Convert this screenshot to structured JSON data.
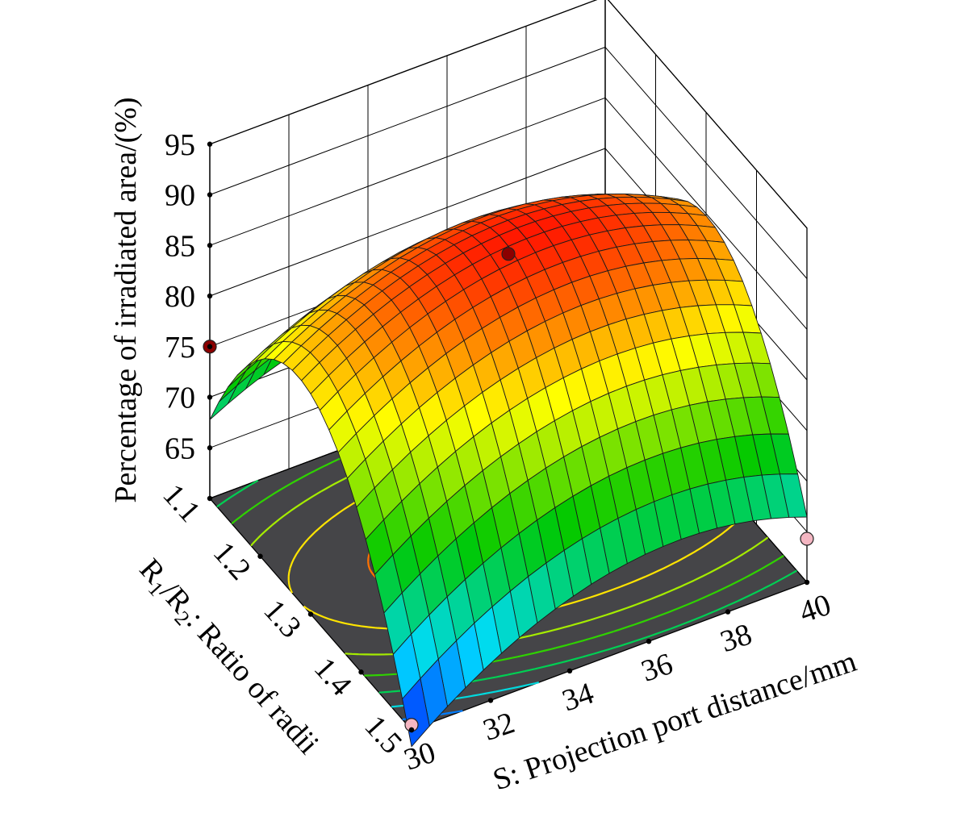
{
  "chart_data": {
    "type": "surface",
    "zlabel": "Percentage of irradiated area/(%)",
    "xlabel": "S:  Projection port distance/mm",
    "ylabel_parts": {
      "r1": "R",
      "sub1": "1",
      "slash": "/R",
      "sub2": "2",
      "rest": ": Ratio of radii"
    },
    "x_ticks": [
      "30",
      "32",
      "34",
      "36",
      "38",
      "40"
    ],
    "y_ticks": [
      "1.1",
      "1.2",
      "1.3",
      "1.4",
      "1.5"
    ],
    "z_ticks": [
      "65",
      "70",
      "75",
      "80",
      "85",
      "90",
      "95"
    ],
    "xlim": [
      30,
      40
    ],
    "ylim": [
      1.1,
      1.5
    ],
    "zlim": [
      60,
      95
    ],
    "model": {
      "description_of_surface": "quadratic response surface",
      "peak_point": {
        "S": 35.6,
        "ratio": 1.29,
        "value": 89.2
      },
      "corner_values": [
        {
          "S": 30,
          "ratio": 1.1,
          "value": 75.0
        },
        {
          "S": 40,
          "ratio": 1.5,
          "value": 64.3
        },
        {
          "S": 30,
          "ratio": 1.5,
          "value": 60.5
        },
        {
          "S": 40,
          "ratio": 1.1,
          "value": 58.5
        }
      ]
    },
    "design_points": [
      {
        "S": 30,
        "ratio": 1.1,
        "value": 75.0,
        "color": "#8b0000"
      },
      {
        "S": 35,
        "ratio": 1.3,
        "value": 88.3,
        "color": "#8b0000"
      },
      {
        "S": 40,
        "ratio": 1.5,
        "value": 64.3,
        "color": "#f4b6c2"
      },
      {
        "S": 30,
        "ratio": 1.5,
        "value": 60.5,
        "color": "#f4b6c2"
      }
    ],
    "colors": {
      "floor": "#454548",
      "surface_scale": [
        "#0000ff",
        "#00ffff",
        "#00c800",
        "#ffff00",
        "#ff0000"
      ]
    }
  }
}
